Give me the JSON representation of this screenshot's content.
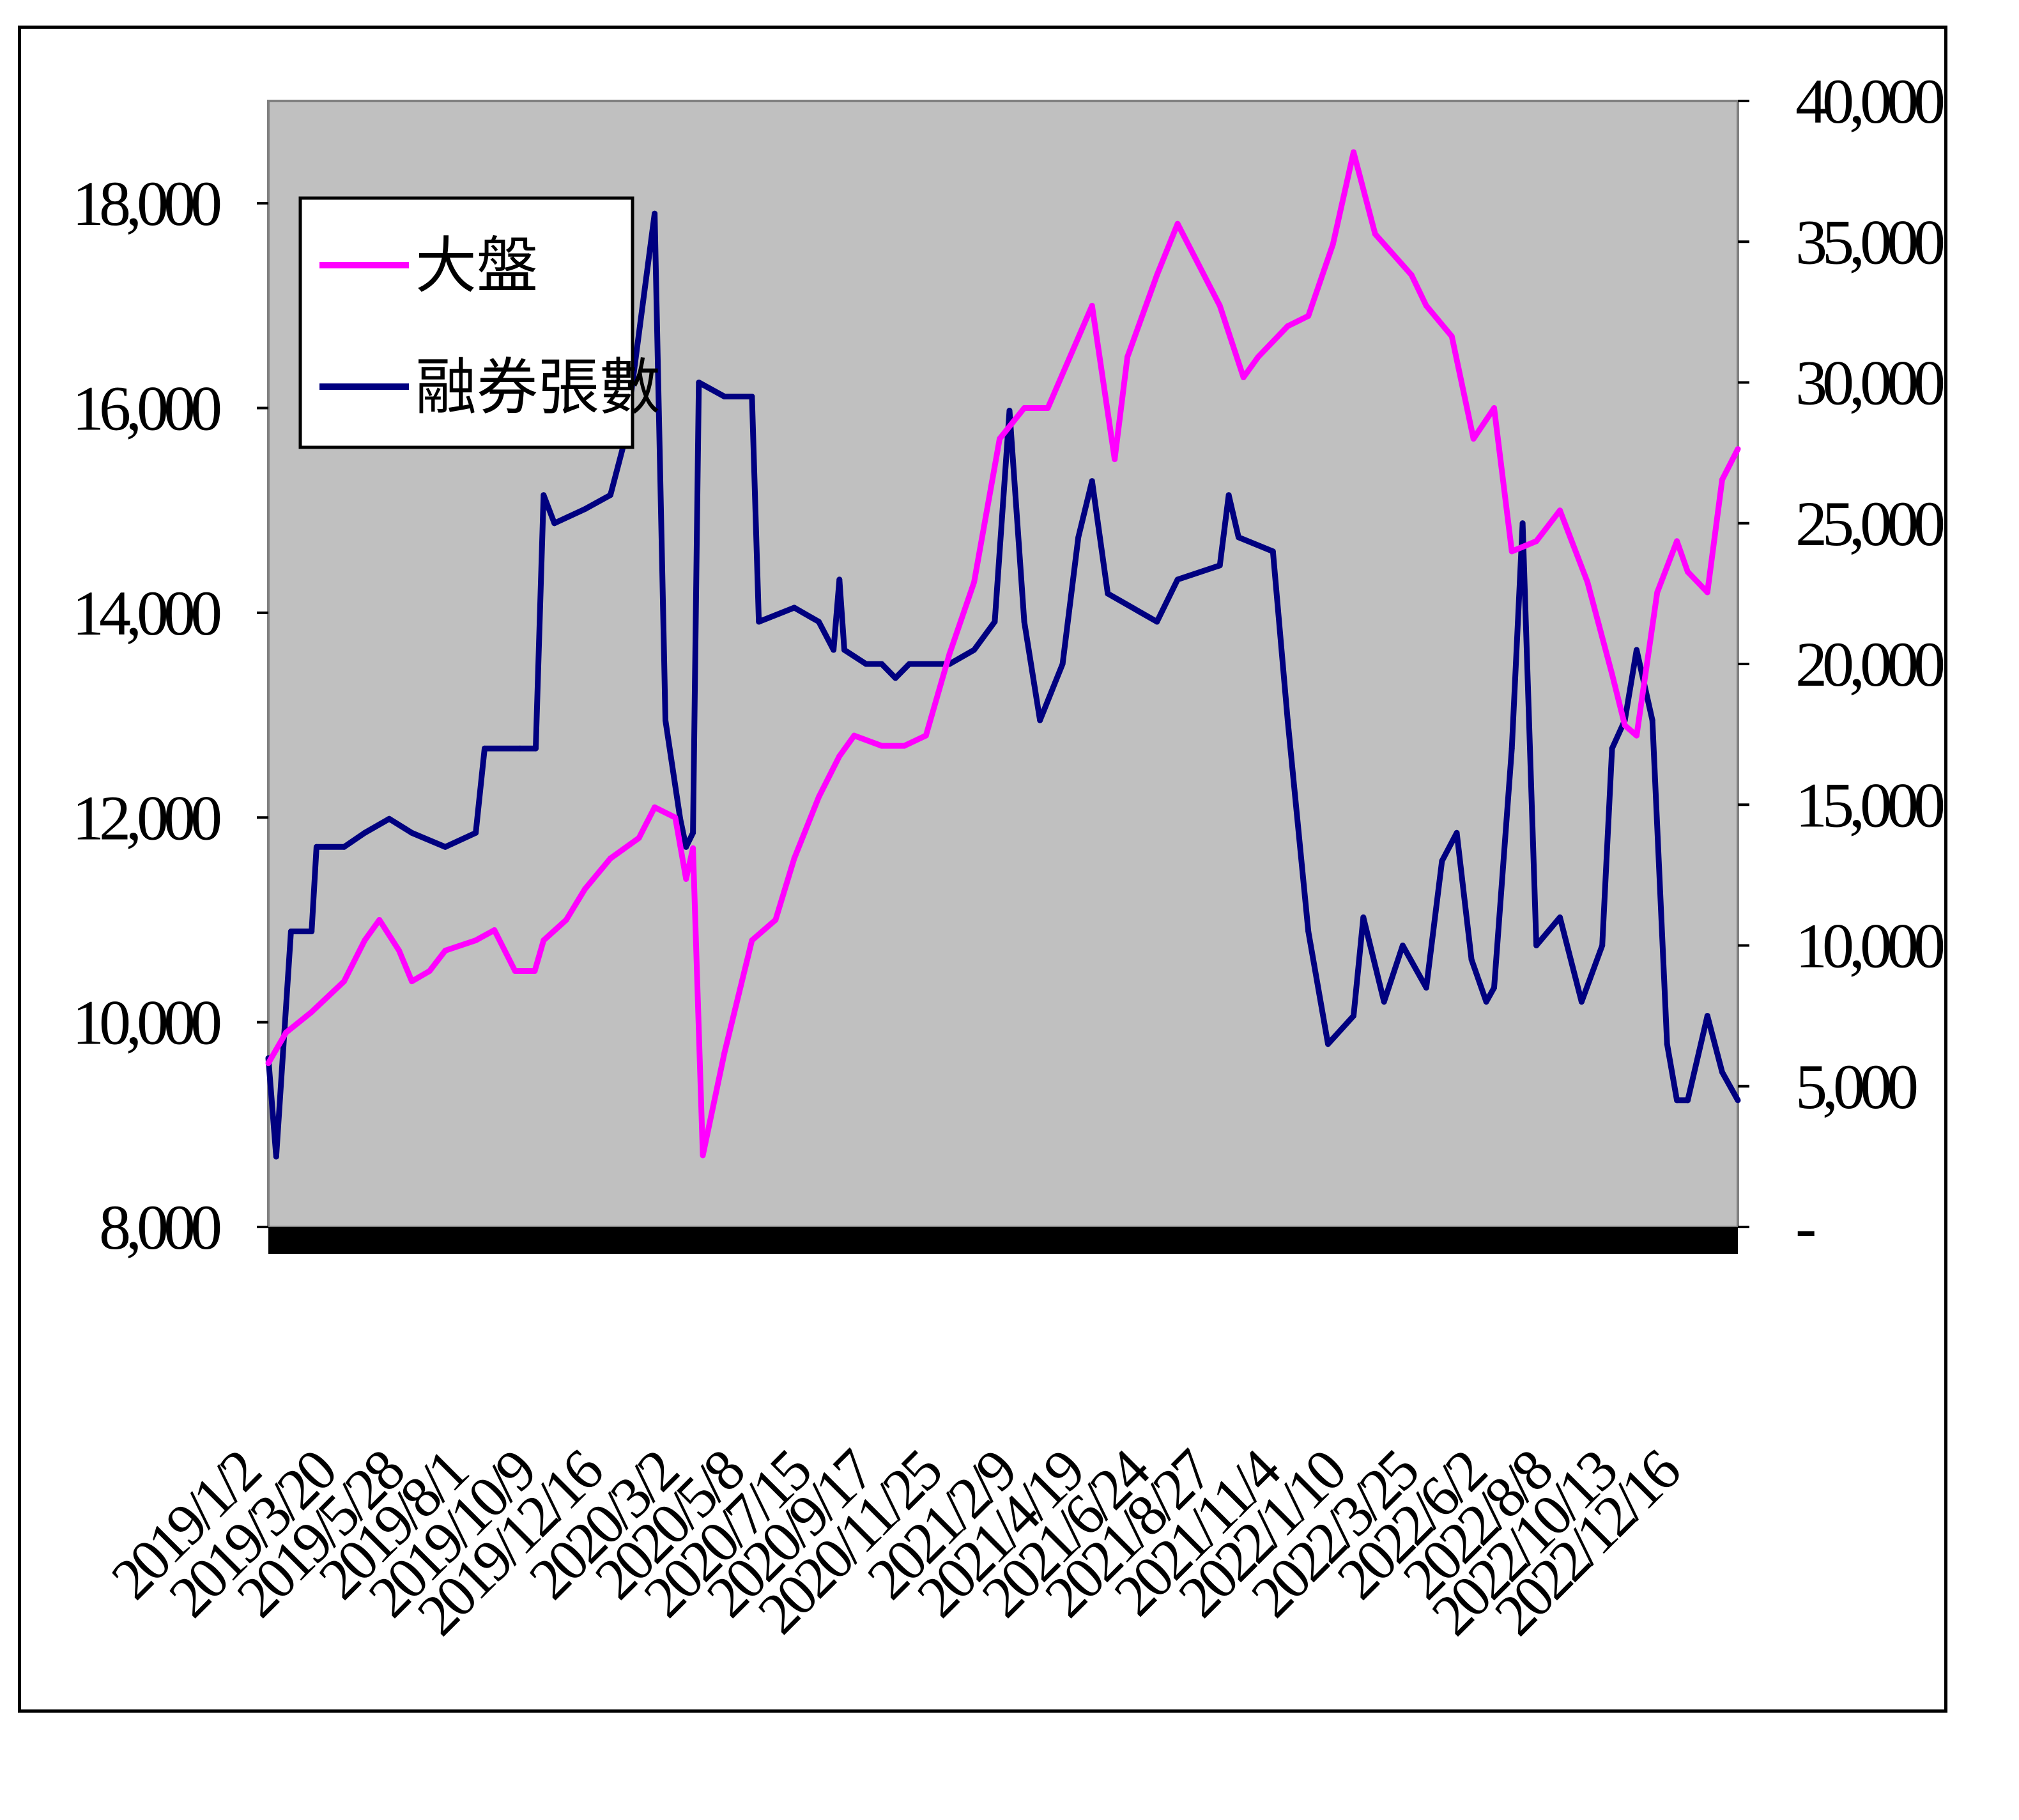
{
  "chart_data": {
    "type": "line",
    "title": "",
    "xlabel": "",
    "ylabel_left": "",
    "ylabel_right": "",
    "plot_background": "#c0c0c0",
    "grid": false,
    "legend_placement": "top-left",
    "y_left": {
      "min": 8000,
      "max": 19000,
      "ticks": [
        8000,
        10000,
        12000,
        14000,
        16000,
        18000
      ],
      "tick_labels": [
        "8,000",
        "10,000",
        "12,000",
        "14,000",
        "16,000",
        "18,000"
      ]
    },
    "y_right": {
      "min": 0,
      "max": 40000,
      "ticks": [
        0,
        5000,
        10000,
        15000,
        20000,
        25000,
        30000,
        35000,
        40000
      ],
      "tick_labels": [
        "-",
        "5,000",
        "10,000",
        "15,000",
        "20,000",
        "25,000",
        "30,000",
        "35,000",
        "40,000"
      ]
    },
    "x_tick_labels": [
      "2019/1/2",
      "2019/3/20",
      "2019/5/28",
      "2019/8/1",
      "2019/10/9",
      "2019/12/16",
      "2020/3/2",
      "2020/5/8",
      "2020/7/15",
      "2020/9/17",
      "2020/11/25",
      "2021/2/9",
      "2021/4/19",
      "2021/6/24",
      "2021/8/27",
      "2021/11/4",
      "2022/1/10",
      "2022/3/25",
      "2022/6/2",
      "2022/8/8",
      "2022/10/13",
      "2022/12/16"
    ],
    "series": [
      {
        "name": "大盤",
        "axis": "left",
        "color": "#ff00ff",
        "points": [
          [
            "2019/1/2",
            9600
          ],
          [
            "2019/1/20",
            9900
          ],
          [
            "2019/2/15",
            10100
          ],
          [
            "2019/3/20",
            10400
          ],
          [
            "2019/4/10",
            10800
          ],
          [
            "2019/4/25",
            11000
          ],
          [
            "2019/5/15",
            10700
          ],
          [
            "2019/5/28",
            10400
          ],
          [
            "2019/6/15",
            10500
          ],
          [
            "2019/7/1",
            10700
          ],
          [
            "2019/8/1",
            10800
          ],
          [
            "2019/8/20",
            10900
          ],
          [
            "2019/9/10",
            10500
          ],
          [
            "2019/9/30",
            10500
          ],
          [
            "2019/10/9",
            10800
          ],
          [
            "2019/11/1",
            11000
          ],
          [
            "2019/11/20",
            11300
          ],
          [
            "2019/12/16",
            11600
          ],
          [
            "2020/1/14",
            11800
          ],
          [
            "2020/1/30",
            12100
          ],
          [
            "2020/2/20",
            12000
          ],
          [
            "2020/3/2",
            11400
          ],
          [
            "2020/3/9",
            11700
          ],
          [
            "2020/3/19",
            8700
          ],
          [
            "2020/4/10",
            9700
          ],
          [
            "2020/5/8",
            10800
          ],
          [
            "2020/6/1",
            11000
          ],
          [
            "2020/6/20",
            11600
          ],
          [
            "2020/7/15",
            12200
          ],
          [
            "2020/8/5",
            12600
          ],
          [
            "2020/8/20",
            12800
          ],
          [
            "2020/9/17",
            12700
          ],
          [
            "2020/10/10",
            12700
          ],
          [
            "2020/11/1",
            12800
          ],
          [
            "2020/11/25",
            13600
          ],
          [
            "2020/12/20",
            14300
          ],
          [
            "2021/1/15",
            15700
          ],
          [
            "2021/2/9",
            16000
          ],
          [
            "2021/3/5",
            16000
          ],
          [
            "2021/4/19",
            17000
          ],
          [
            "2021/5/12",
            15500
          ],
          [
            "2021/5/25",
            16500
          ],
          [
            "2021/6/24",
            17300
          ],
          [
            "2021/7/15",
            17800
          ],
          [
            "2021/8/27",
            17000
          ],
          [
            "2021/9/20",
            16300
          ],
          [
            "2021/10/5",
            16500
          ],
          [
            "2021/11/4",
            16800
          ],
          [
            "2021/11/25",
            16900
          ],
          [
            "2021/12/20",
            17600
          ],
          [
            "2022/1/10",
            18500
          ],
          [
            "2022/2/1",
            17700
          ],
          [
            "2022/3/10",
            17300
          ],
          [
            "2022/3/25",
            17000
          ],
          [
            "2022/4/20",
            16700
          ],
          [
            "2022/5/12",
            15700
          ],
          [
            "2022/6/2",
            16000
          ],
          [
            "2022/6/20",
            14600
          ],
          [
            "2022/7/15",
            14700
          ],
          [
            "2022/8/8",
            15000
          ],
          [
            "2022/9/5",
            14300
          ],
          [
            "2022/9/30",
            13400
          ],
          [
            "2022/10/13",
            12900
          ],
          [
            "2022/10/25",
            12800
          ],
          [
            "2022/11/15",
            14200
          ],
          [
            "2022/12/5",
            14700
          ],
          [
            "2022/12/16",
            14400
          ],
          [
            "2023/1/5",
            14200
          ],
          [
            "2023/1/20",
            15300
          ],
          [
            "2023/2/5",
            15600
          ]
        ]
      },
      {
        "name": "融券張數",
        "axis": "right",
        "color": "#000080",
        "points": [
          [
            "2019/1/2",
            6000
          ],
          [
            "2019/1/10",
            2500
          ],
          [
            "2019/1/25",
            10500
          ],
          [
            "2019/2/15",
            10500
          ],
          [
            "2019/2/20",
            13500
          ],
          [
            "2019/3/20",
            13500
          ],
          [
            "2019/4/10",
            14000
          ],
          [
            "2019/5/5",
            14500
          ],
          [
            "2019/5/28",
            14000
          ],
          [
            "2019/7/1",
            13500
          ],
          [
            "2019/8/1",
            14000
          ],
          [
            "2019/8/10",
            17000
          ],
          [
            "2019/9/15",
            17000
          ],
          [
            "2019/10/1",
            17000
          ],
          [
            "2019/10/9",
            26000
          ],
          [
            "2019/10/20",
            25000
          ],
          [
            "2019/11/20",
            25500
          ],
          [
            "2019/12/16",
            26000
          ],
          [
            "2019/12/31",
            28000
          ],
          [
            "2020/1/15",
            32000
          ],
          [
            "2020/1/30",
            36000
          ],
          [
            "2020/2/10",
            18000
          ],
          [
            "2020/2/25",
            14500
          ],
          [
            "2020/3/2",
            13500
          ],
          [
            "2020/3/9",
            14000
          ],
          [
            "2020/3/15",
            30000
          ],
          [
            "2020/4/10",
            29500
          ],
          [
            "2020/5/8",
            29500
          ],
          [
            "2020/5/15",
            21500
          ],
          [
            "2020/6/20",
            22000
          ],
          [
            "2020/7/15",
            21500
          ],
          [
            "2020/7/30",
            20500
          ],
          [
            "2020/8/5",
            23000
          ],
          [
            "2020/8/10",
            20500
          ],
          [
            "2020/9/1",
            20000
          ],
          [
            "2020/9/17",
            20000
          ],
          [
            "2020/10/1",
            19500
          ],
          [
            "2020/10/15",
            20000
          ],
          [
            "2020/11/25",
            20000
          ],
          [
            "2020/12/20",
            20500
          ],
          [
            "2021/1/10",
            21500
          ],
          [
            "2021/1/25",
            29000
          ],
          [
            "2021/2/9",
            21500
          ],
          [
            "2021/2/25",
            18000
          ],
          [
            "2021/3/20",
            20000
          ],
          [
            "2021/4/5",
            24500
          ],
          [
            "2021/4/19",
            26500
          ],
          [
            "2021/5/5",
            22500
          ],
          [
            "2021/6/24",
            21500
          ],
          [
            "2021/7/15",
            23000
          ],
          [
            "2021/8/27",
            23500
          ],
          [
            "2021/9/5",
            26000
          ],
          [
            "2021/9/15",
            24500
          ],
          [
            "2021/10/20",
            24000
          ],
          [
            "2021/11/4",
            18000
          ],
          [
            "2021/11/25",
            10500
          ],
          [
            "2021/12/15",
            6500
          ],
          [
            "2022/1/10",
            7500
          ],
          [
            "2022/1/20",
            11000
          ],
          [
            "2022/2/10",
            8000
          ],
          [
            "2022/3/1",
            10000
          ],
          [
            "2022/3/25",
            8500
          ],
          [
            "2022/4/10",
            13000
          ],
          [
            "2022/4/25",
            14000
          ],
          [
            "2022/5/10",
            9500
          ],
          [
            "2022/5/25",
            8000
          ],
          [
            "2022/6/2",
            8500
          ],
          [
            "2022/6/20",
            17000
          ],
          [
            "2022/7/1",
            25000
          ],
          [
            "2022/7/15",
            10000
          ],
          [
            "2022/8/8",
            11000
          ],
          [
            "2022/8/30",
            8000
          ],
          [
            "2022/9/20",
            10000
          ],
          [
            "2022/9/30",
            17000
          ],
          [
            "2022/10/13",
            18000
          ],
          [
            "2022/10/25",
            20500
          ],
          [
            "2022/11/10",
            18000
          ],
          [
            "2022/11/25",
            6500
          ],
          [
            "2022/12/5",
            4500
          ],
          [
            "2022/12/16",
            4500
          ],
          [
            "2023/1/5",
            7500
          ],
          [
            "2023/1/20",
            5500
          ],
          [
            "2023/2/5",
            4500
          ]
        ]
      }
    ]
  }
}
